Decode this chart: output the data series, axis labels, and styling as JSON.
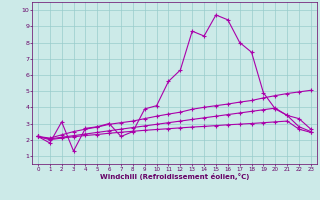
{
  "xlabel": "Windchill (Refroidissement éolien,°C)",
  "xlim": [
    -0.5,
    23.5
  ],
  "ylim": [
    0.5,
    10.5
  ],
  "xticks": [
    0,
    1,
    2,
    3,
    4,
    5,
    6,
    7,
    8,
    9,
    10,
    11,
    12,
    13,
    14,
    15,
    16,
    17,
    18,
    19,
    20,
    21,
    22,
    23
  ],
  "yticks": [
    1,
    2,
    3,
    4,
    5,
    6,
    7,
    8,
    9,
    10
  ],
  "bg_color": "#cceae8",
  "line_color": "#aa00aa",
  "grid_color": "#99cccc",
  "line1_x": [
    0,
    1,
    2,
    3,
    4,
    5,
    6,
    7,
    8,
    9,
    10,
    11,
    12,
    13,
    14,
    15,
    16,
    17,
    18,
    19,
    20,
    21,
    22,
    23
  ],
  "line1_y": [
    2.2,
    1.8,
    3.1,
    1.3,
    2.7,
    2.8,
    3.0,
    2.2,
    2.5,
    3.9,
    4.1,
    5.6,
    6.3,
    8.7,
    8.4,
    9.7,
    9.4,
    8.0,
    7.4,
    4.9,
    3.9,
    3.5,
    2.8,
    2.5
  ],
  "line2_x": [
    0,
    1,
    2,
    3,
    4,
    5,
    6,
    7,
    8,
    9,
    10,
    11,
    12,
    13,
    14,
    15,
    16,
    17,
    18,
    19,
    20,
    21,
    22,
    23
  ],
  "line2_y": [
    2.2,
    2.1,
    2.3,
    2.5,
    2.65,
    2.78,
    2.95,
    3.05,
    3.15,
    3.3,
    3.45,
    3.58,
    3.7,
    3.88,
    4.0,
    4.1,
    4.2,
    4.32,
    4.42,
    4.58,
    4.72,
    4.85,
    4.95,
    5.05
  ],
  "line3_x": [
    0,
    1,
    2,
    3,
    4,
    5,
    6,
    7,
    8,
    9,
    10,
    11,
    12,
    13,
    14,
    15,
    16,
    17,
    18,
    19,
    20,
    21,
    22,
    23
  ],
  "line3_y": [
    2.2,
    2.05,
    2.15,
    2.25,
    2.35,
    2.45,
    2.55,
    2.65,
    2.75,
    2.85,
    2.95,
    3.05,
    3.15,
    3.25,
    3.35,
    3.45,
    3.55,
    3.65,
    3.75,
    3.85,
    3.95,
    3.5,
    3.3,
    2.65
  ],
  "line4_x": [
    0,
    1,
    2,
    3,
    4,
    5,
    6,
    7,
    8,
    9,
    10,
    11,
    12,
    13,
    14,
    15,
    16,
    17,
    18,
    19,
    20,
    21,
    22,
    23
  ],
  "line4_y": [
    2.2,
    2.0,
    2.1,
    2.18,
    2.26,
    2.32,
    2.4,
    2.46,
    2.52,
    2.58,
    2.63,
    2.68,
    2.73,
    2.78,
    2.82,
    2.87,
    2.92,
    2.96,
    3.0,
    3.05,
    3.1,
    3.15,
    2.65,
    2.45
  ]
}
